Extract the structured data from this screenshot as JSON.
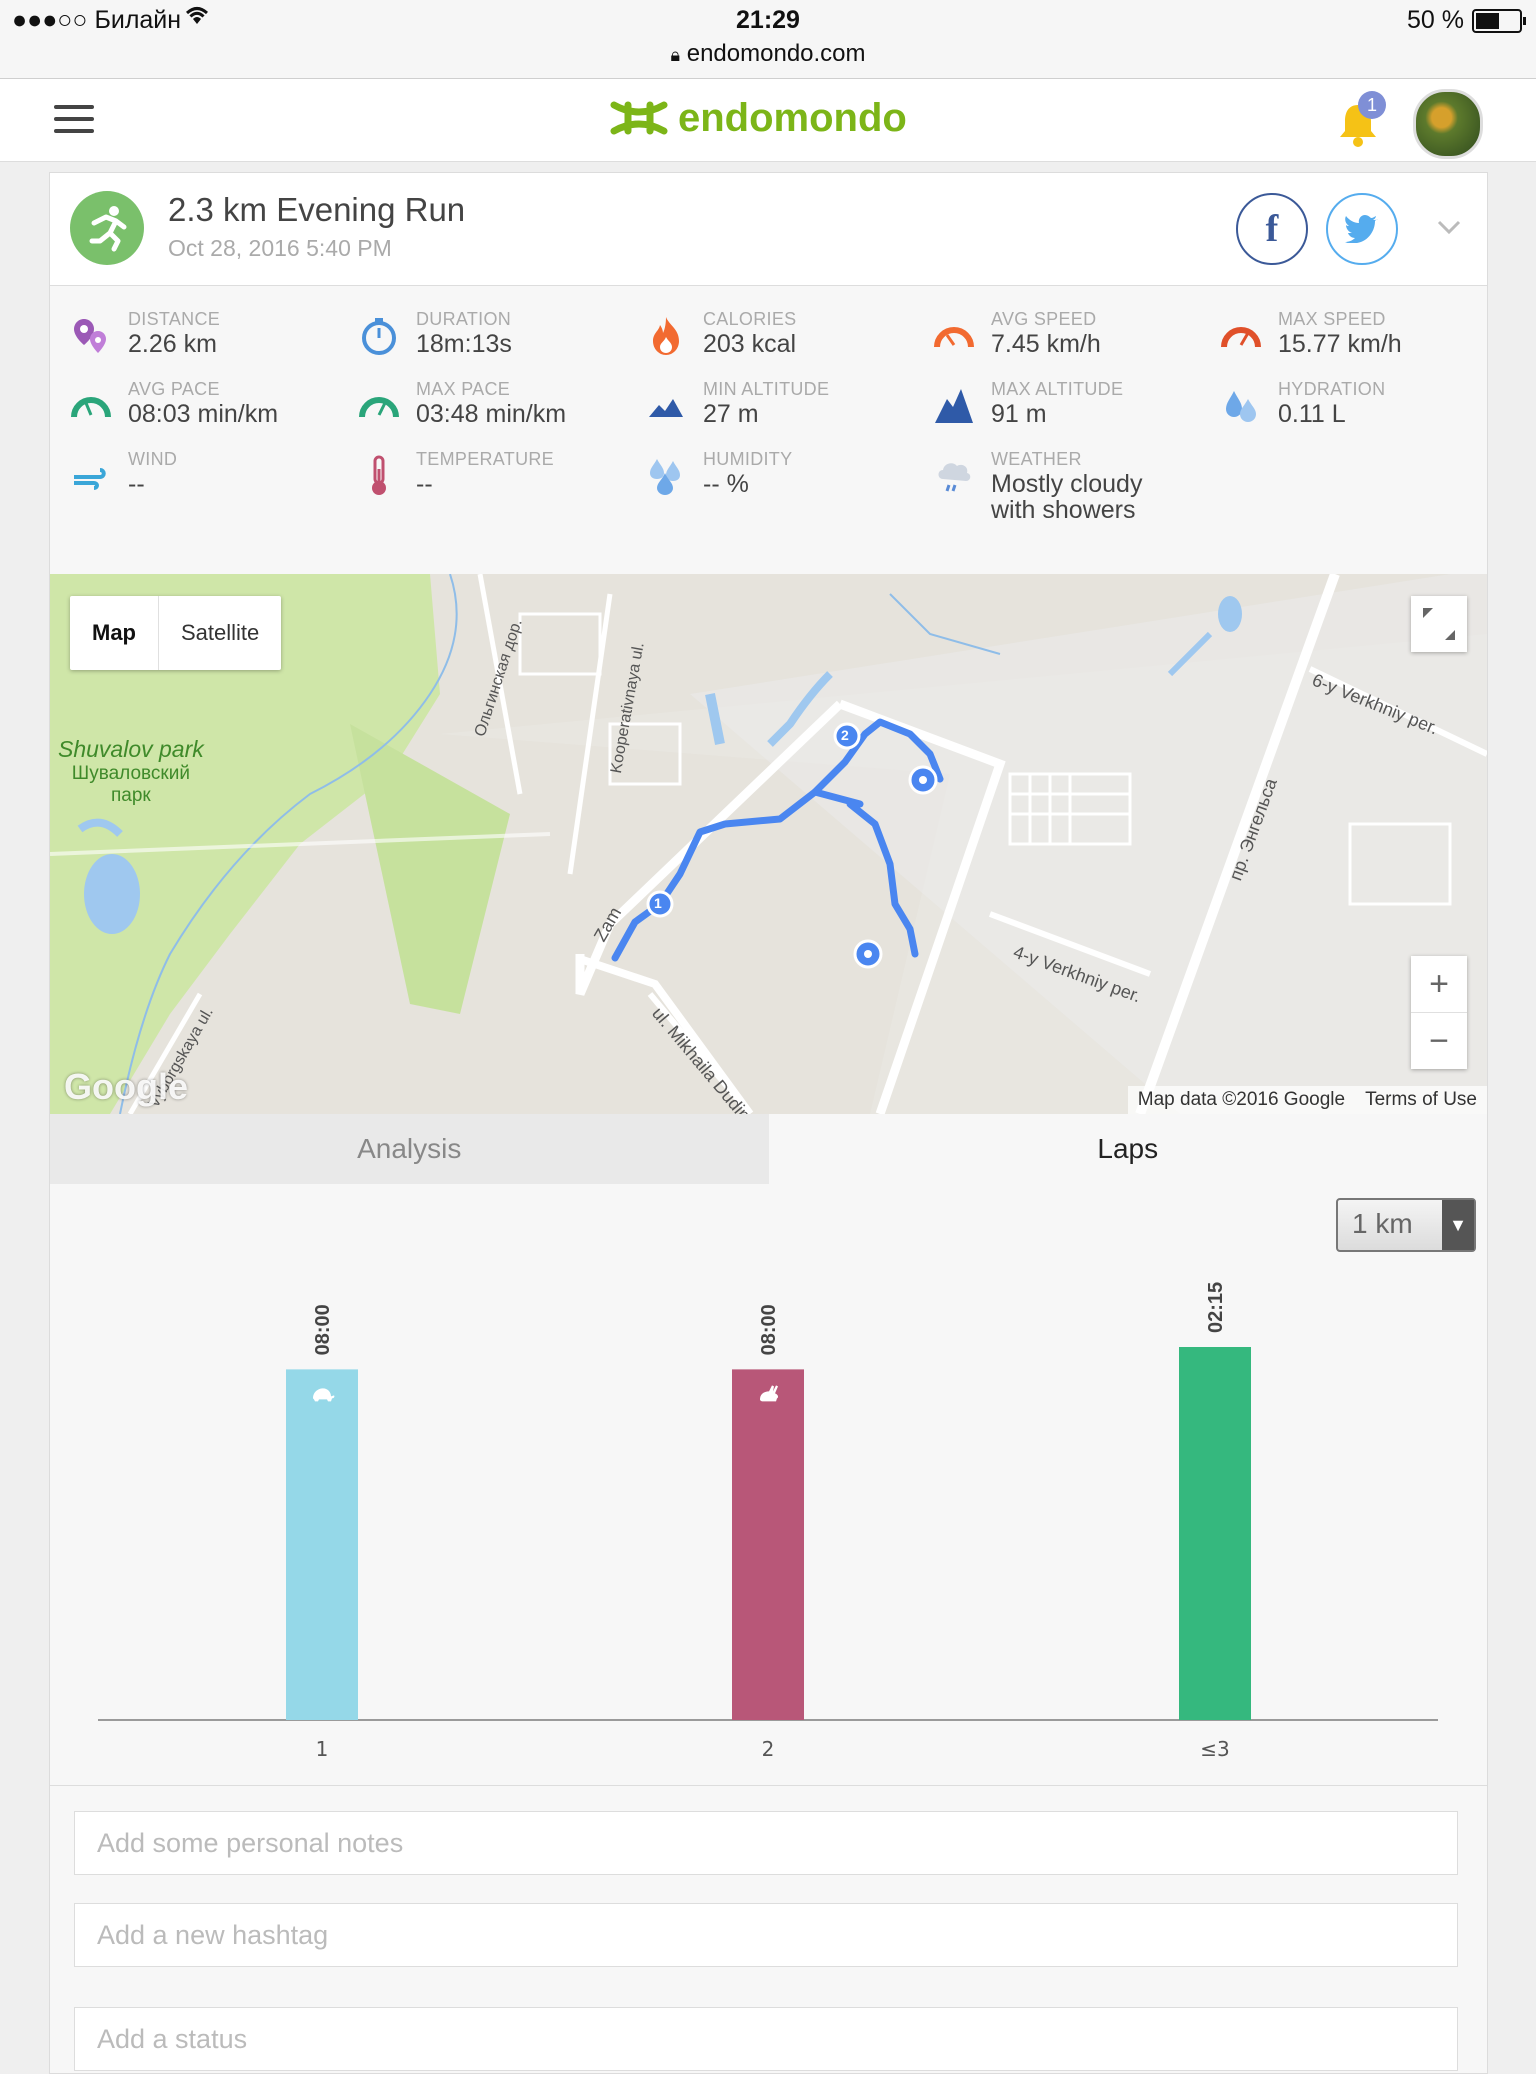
{
  "status_bar": {
    "carrier": "●●●○○ Билайн",
    "time": "21:29",
    "url": "endomondo.com",
    "battery": "50 %",
    "battery_level": 0.5
  },
  "header": {
    "logo_text": "endomondo",
    "notification_count": "1",
    "brand_color": "#7cb518",
    "icons": {
      "menu": "hamburger-icon",
      "bell": "bell-icon",
      "avatar": "avatar"
    }
  },
  "activity": {
    "title": "2.3 km Evening Run",
    "date": "Oct 28, 2016 5:40 PM",
    "share": {
      "facebook": "f",
      "twitter": "twitter-bird"
    }
  },
  "stats": [
    {
      "label": "DISTANCE",
      "value": "2.26 km",
      "icon": "distance-pin-icon",
      "color": "#9b59b6"
    },
    {
      "label": "DURATION",
      "value": "18m:13s",
      "icon": "stopwatch-icon",
      "color": "#4a90d9"
    },
    {
      "label": "CALORIES",
      "value": "203 kcal",
      "icon": "flame-icon",
      "color": "#f26a30"
    },
    {
      "label": "AVG SPEED",
      "value": "7.45 km/h",
      "icon": "speedometer-icon",
      "color": "#f26a30"
    },
    {
      "label": "MAX SPEED",
      "value": "15.77 km/h",
      "icon": "speedometer-icon",
      "color": "#e0502a"
    },
    {
      "label": "AVG PACE",
      "value": "08:03 min/km",
      "icon": "pace-gauge-icon",
      "color": "#2aa57a"
    },
    {
      "label": "MAX PACE",
      "value": "03:48 min/km",
      "icon": "pace-gauge-icon",
      "color": "#2aa57a"
    },
    {
      "label": "MIN ALTITUDE",
      "value": "27 m",
      "icon": "mountain-icon",
      "color": "#2f5aa8"
    },
    {
      "label": "MAX ALTITUDE",
      "value": "91 m",
      "icon": "mountain-icon",
      "color": "#2f5aa8"
    },
    {
      "label": "HYDRATION",
      "value": "0.11 L",
      "icon": "water-drops-icon",
      "color": "#6ea8e8"
    },
    {
      "label": "WIND",
      "value": "--",
      "icon": "wind-icon",
      "color": "#3aa6d8"
    },
    {
      "label": "TEMPERATURE",
      "value": "--",
      "icon": "thermometer-icon",
      "color": "#c0506f"
    },
    {
      "label": "HUMIDITY",
      "value": "-- %",
      "icon": "humidity-drops-icon",
      "color": "#6ea8e8"
    },
    {
      "label": "WEATHER",
      "value": "Mostly cloudy with showers",
      "icon": "cloud-rain-icon",
      "color": "#9aa8c0"
    }
  ],
  "map": {
    "toggle": {
      "map": "Map",
      "satellite": "Satellite"
    },
    "labels": {
      "park_en": "Shuvalov park",
      "park_ru1": "Шуваловский",
      "park_ru2": "парк",
      "road1": "Ольгинская дор.",
      "road2": "Kooperativnaya ul.",
      "road3": "6-y Verkhniy per.",
      "road4": "пр. Энгельса",
      "road5": "4-y Verkhniy per.",
      "road6": "ul. Mikhaila Dudin",
      "road7": "Zam",
      "road8": "Vyborgskaya ul."
    },
    "attribution": "Map data ©2016 Google",
    "terms": "Terms of Use",
    "google": "Google",
    "zoom_in": "+",
    "zoom_out": "−",
    "markers": [
      "1",
      "2"
    ]
  },
  "tabs": {
    "analysis": "Analysis",
    "laps": "Laps"
  },
  "lap_unit": {
    "selected": "1 km",
    "arrow": "▼"
  },
  "chart_data": {
    "type": "bar",
    "categories": [
      "1",
      "2",
      "≤3"
    ],
    "series": [
      {
        "values": [
          8.0,
          8.0,
          2.25
        ]
      }
    ],
    "data_labels": [
      "08:00",
      "08:00",
      "02:15"
    ],
    "bar_values_fraction": [
      0.94,
      0.94,
      1.0
    ],
    "bar_colors": [
      "#95d8e8",
      "#b85778",
      "#35b87e"
    ],
    "bar_icons": [
      "turtle-icon",
      "rabbit-icon",
      ""
    ],
    "title": "",
    "xlabel": "",
    "ylabel": ""
  },
  "inputs": {
    "notes_placeholder": "Add some personal notes",
    "hashtag_placeholder": "Add a new hashtag",
    "status_placeholder": "Add a status"
  }
}
